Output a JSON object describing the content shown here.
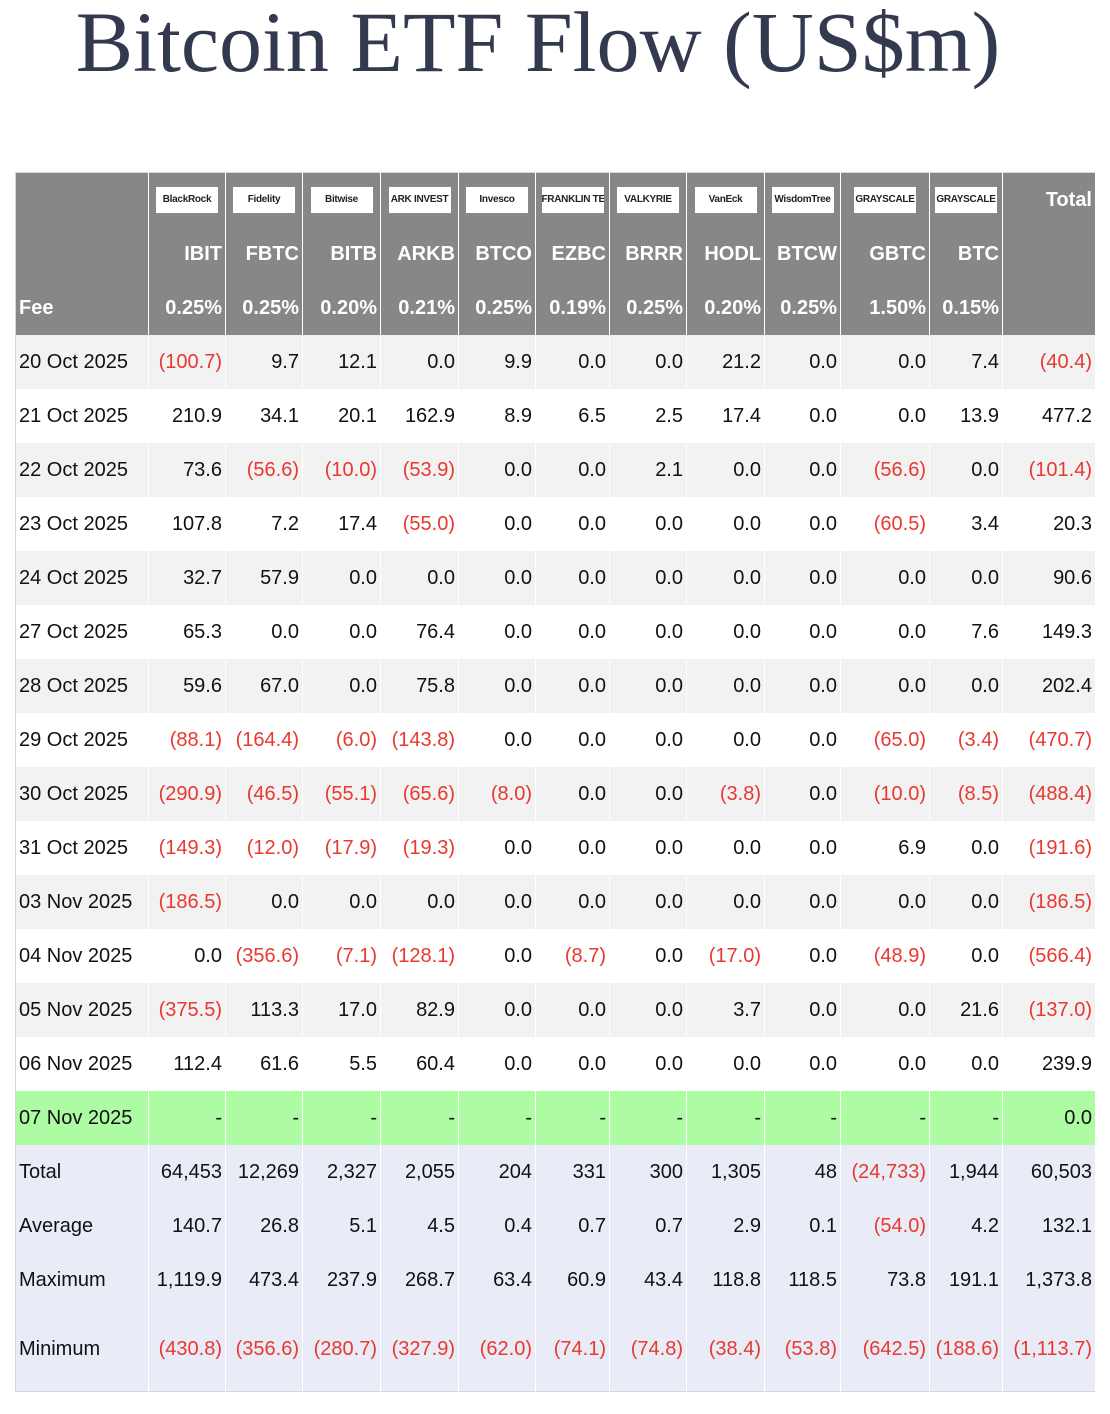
{
  "title": "Bitcoin ETF Flow (US$m)",
  "table": {
    "logos": [
      "BlackRock",
      "Fidelity",
      "Bitwise",
      "ARK INVEST",
      "Invesco",
      "FRANKLIN TEMPLETON",
      "VALKYRIE",
      "VanEck",
      "WisdomTree",
      "GRAYSCALE",
      "GRAYSCALE"
    ],
    "total_header": "Total",
    "tickers": [
      "IBIT",
      "FBTC",
      "BITB",
      "ARKB",
      "BTCO",
      "EZBC",
      "BRRR",
      "HODL",
      "BTCW",
      "GBTC",
      "BTC"
    ],
    "fee_label": "Fee",
    "fees": [
      "0.25%",
      "0.25%",
      "0.20%",
      "0.21%",
      "0.25%",
      "0.19%",
      "0.25%",
      "0.20%",
      "0.25%",
      "1.50%",
      "0.15%"
    ],
    "rows": [
      [
        "20 Oct 2025",
        "(100.7)",
        "9.7",
        "12.1",
        "0.0",
        "9.9",
        "0.0",
        "0.0",
        "21.2",
        "0.0",
        "0.0",
        "7.4",
        "(40.4)"
      ],
      [
        "21 Oct 2025",
        "210.9",
        "34.1",
        "20.1",
        "162.9",
        "8.9",
        "6.5",
        "2.5",
        "17.4",
        "0.0",
        "0.0",
        "13.9",
        "477.2"
      ],
      [
        "22 Oct 2025",
        "73.6",
        "(56.6)",
        "(10.0)",
        "(53.9)",
        "0.0",
        "0.0",
        "2.1",
        "0.0",
        "0.0",
        "(56.6)",
        "0.0",
        "(101.4)"
      ],
      [
        "23 Oct 2025",
        "107.8",
        "7.2",
        "17.4",
        "(55.0)",
        "0.0",
        "0.0",
        "0.0",
        "0.0",
        "0.0",
        "(60.5)",
        "3.4",
        "20.3"
      ],
      [
        "24 Oct 2025",
        "32.7",
        "57.9",
        "0.0",
        "0.0",
        "0.0",
        "0.0",
        "0.0",
        "0.0",
        "0.0",
        "0.0",
        "0.0",
        "90.6"
      ],
      [
        "27 Oct 2025",
        "65.3",
        "0.0",
        "0.0",
        "76.4",
        "0.0",
        "0.0",
        "0.0",
        "0.0",
        "0.0",
        "0.0",
        "7.6",
        "149.3"
      ],
      [
        "28 Oct 2025",
        "59.6",
        "67.0",
        "0.0",
        "75.8",
        "0.0",
        "0.0",
        "0.0",
        "0.0",
        "0.0",
        "0.0",
        "0.0",
        "202.4"
      ],
      [
        "29 Oct 2025",
        "(88.1)",
        "(164.4)",
        "(6.0)",
        "(143.8)",
        "0.0",
        "0.0",
        "0.0",
        "0.0",
        "0.0",
        "(65.0)",
        "(3.4)",
        "(470.7)"
      ],
      [
        "30 Oct 2025",
        "(290.9)",
        "(46.5)",
        "(55.1)",
        "(65.6)",
        "(8.0)",
        "0.0",
        "0.0",
        "(3.8)",
        "0.0",
        "(10.0)",
        "(8.5)",
        "(488.4)"
      ],
      [
        "31 Oct 2025",
        "(149.3)",
        "(12.0)",
        "(17.9)",
        "(19.3)",
        "0.0",
        "0.0",
        "0.0",
        "0.0",
        "0.0",
        "6.9",
        "0.0",
        "(191.6)"
      ],
      [
        "03 Nov 2025",
        "(186.5)",
        "0.0",
        "0.0",
        "0.0",
        "0.0",
        "0.0",
        "0.0",
        "0.0",
        "0.0",
        "0.0",
        "0.0",
        "(186.5)"
      ],
      [
        "04 Nov 2025",
        "0.0",
        "(356.6)",
        "(7.1)",
        "(128.1)",
        "0.0",
        "(8.7)",
        "0.0",
        "(17.0)",
        "0.0",
        "(48.9)",
        "0.0",
        "(566.4)"
      ],
      [
        "05 Nov 2025",
        "(375.5)",
        "113.3",
        "17.0",
        "82.9",
        "0.0",
        "0.0",
        "0.0",
        "3.7",
        "0.0",
        "0.0",
        "21.6",
        "(137.0)"
      ],
      [
        "06 Nov 2025",
        "112.4",
        "61.6",
        "5.5",
        "60.4",
        "0.0",
        "0.0",
        "0.0",
        "0.0",
        "0.0",
        "0.0",
        "0.0",
        "239.9"
      ],
      [
        "07 Nov 2025",
        "-",
        "-",
        "-",
        "-",
        "-",
        "-",
        "-",
        "-",
        "-",
        "-",
        "-",
        "0.0"
      ]
    ],
    "summary": [
      [
        "Total",
        "64,453",
        "12,269",
        "2,327",
        "2,055",
        "204",
        "331",
        "300",
        "1,305",
        "48",
        "(24,733)",
        "1,944",
        "60,503"
      ],
      [
        "Average",
        "140.7",
        "26.8",
        "5.1",
        "4.5",
        "0.4",
        "0.7",
        "0.7",
        "2.9",
        "0.1",
        "(54.0)",
        "4.2",
        "132.1"
      ],
      [
        "Maximum",
        "1,119.9",
        "473.4",
        "237.9",
        "268.7",
        "63.4",
        "60.9",
        "43.4",
        "118.8",
        "118.5",
        "73.8",
        "191.1",
        "1,373.8"
      ],
      [
        "Minimum",
        "(430.8)",
        "(356.6)",
        "(280.7)",
        "(327.9)",
        "(62.0)",
        "(74.1)",
        "(74.8)",
        "(38.4)",
        "(53.8)",
        "(642.5)",
        "(188.6)",
        "(1,113.7)"
      ]
    ]
  }
}
